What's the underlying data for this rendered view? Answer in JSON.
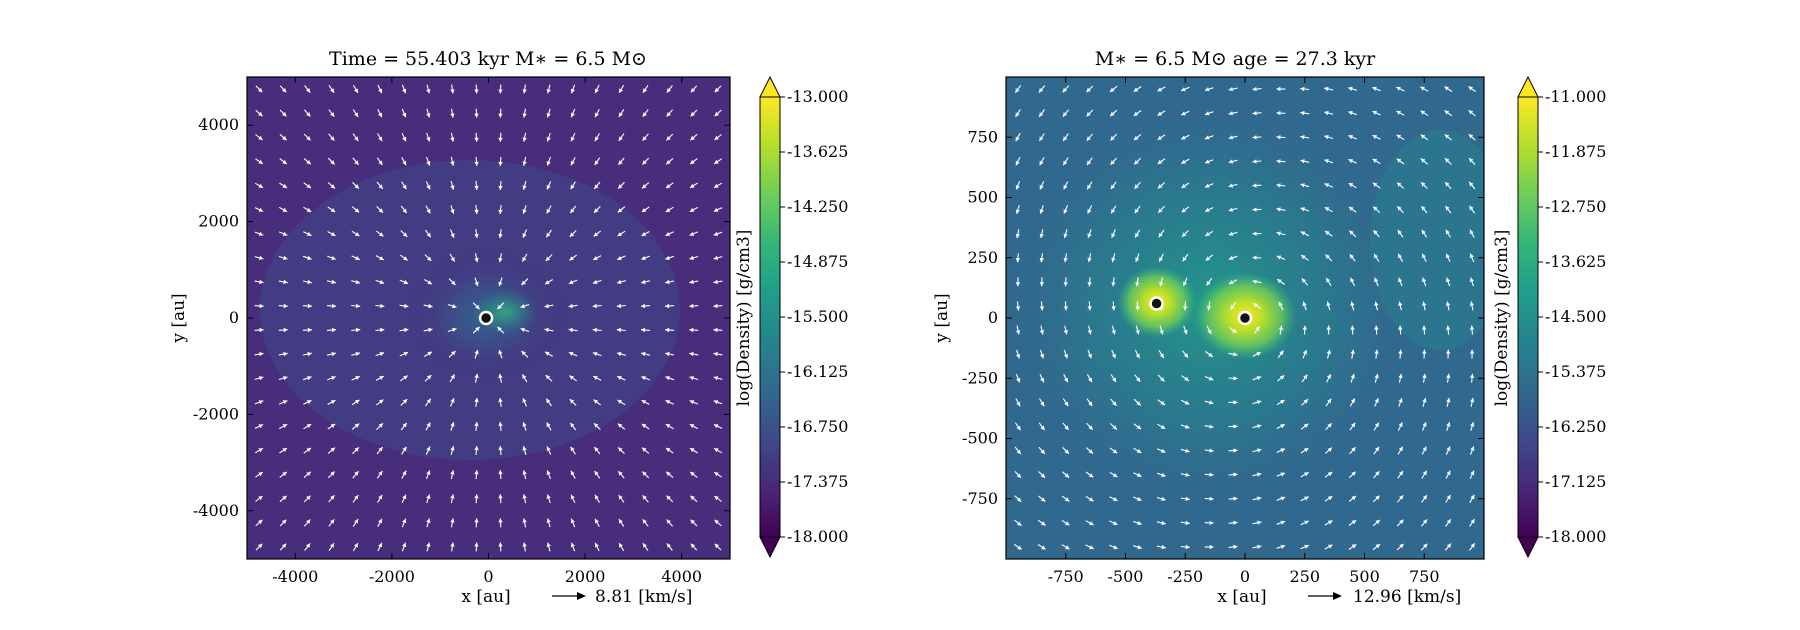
{
  "chart_data": [
    {
      "type": "heatmap",
      "title": "Time = 55.403 kyr    M$_*$ = 6.5 M$_\\odot$",
      "title_display": "Time = 55.403 kyr    M∗ = 6.5 M⊙",
      "xlabel": "x [au]",
      "ylabel": "y [au]",
      "xlim": [
        -5000,
        5000
      ],
      "ylim": [
        -5000,
        5000
      ],
      "xticks": [
        -4000,
        -2000,
        0,
        2000,
        4000
      ],
      "xtick_labels": [
        "-4000",
        "-2000",
        "0",
        "2000",
        "4000"
      ],
      "yticks": [
        -4000,
        -2000,
        0,
        2000,
        4000
      ],
      "ytick_labels": [
        "-4000",
        "-2000",
        "0",
        "2000",
        "4000"
      ],
      "velocity_key": "8.81 [km/s]",
      "field_pattern": "infall",
      "dense_core_center": [
        0,
        0
      ],
      "sinks": [
        [
          -50,
          0
        ]
      ],
      "colorbar": {
        "label": "log(Density) [g/cm3]",
        "min": -18.0,
        "max": -13.0,
        "extend": "both",
        "ticks": [
          "-13.000",
          "-13.625",
          "-14.250",
          "-14.875",
          "-15.500",
          "-16.125",
          "-16.750",
          "-17.375",
          "-18.000"
        ]
      }
    },
    {
      "type": "heatmap",
      "title": "M$_*$ = 6.5 M$_\\odot$        age = 27.3 kyr",
      "title_display": "M∗ = 6.5 M⊙        age = 27.3 kyr",
      "xlabel": "x [au]",
      "ylabel": "y [au]",
      "xlim": [
        -1000,
        1000
      ],
      "ylim": [
        -1000,
        1000
      ],
      "xticks": [
        -750,
        -500,
        -250,
        0,
        250,
        500,
        750
      ],
      "xtick_labels": [
        "-750",
        "-500",
        "-250",
        "0",
        "250",
        "500",
        "750"
      ],
      "yticks": [
        -750,
        -500,
        -250,
        0,
        250,
        500,
        750
      ],
      "ytick_labels": [
        "-750",
        "-500",
        "-250",
        "0",
        "250",
        "500",
        "750"
      ],
      "velocity_key": "12.96 [km/s]",
      "field_pattern": "rotation",
      "sinks": [
        [
          -370,
          60
        ],
        [
          0,
          0
        ]
      ],
      "colorbar": {
        "label": "log(Density) [g/cm3]",
        "min": -18.0,
        "max": -11.0,
        "extend": "both",
        "ticks": [
          "-11.000",
          "-11.875",
          "-12.750",
          "-13.625",
          "-14.500",
          "-15.375",
          "-16.250",
          "-17.125",
          "-18.000"
        ]
      }
    }
  ],
  "colormap": [
    "#440154",
    "#482878",
    "#3e4989",
    "#31688e",
    "#26828e",
    "#1f9e89",
    "#35b779",
    "#6ece58",
    "#b5de2b",
    "#fde725"
  ],
  "colors": {
    "vector": "#ffffff",
    "sink_ring": "#ffffff",
    "sink_core": "#111111"
  }
}
